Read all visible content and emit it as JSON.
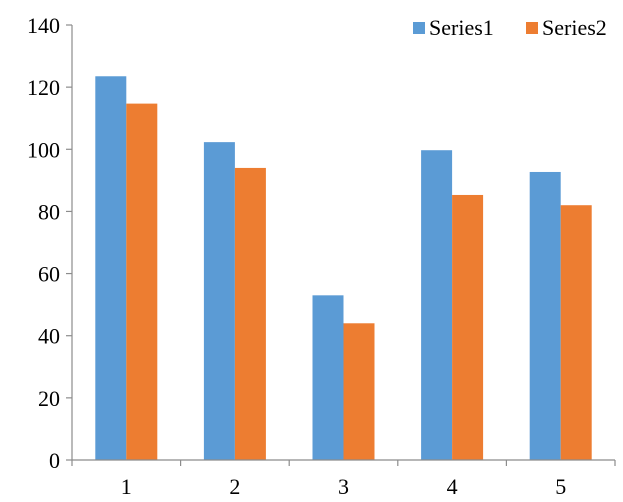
{
  "chart_data": {
    "type": "bar",
    "categories": [
      "1",
      "2",
      "3",
      "4",
      "5"
    ],
    "series": [
      {
        "name": "Series1",
        "values": [
          123.5,
          102.3,
          53,
          99.7,
          92.7
        ],
        "color": "#5b9bd5"
      },
      {
        "name": "Series2",
        "values": [
          114.7,
          94,
          44,
          85.3,
          82
        ],
        "color": "#ed7d31"
      }
    ],
    "title": "",
    "xlabel": "",
    "ylabel": "",
    "ylim": [
      0,
      140
    ],
    "yticks": [
      "0",
      "20",
      "40",
      "60",
      "80",
      "100",
      "120",
      "140"
    ],
    "grid": false,
    "legend_position": "top-right"
  }
}
